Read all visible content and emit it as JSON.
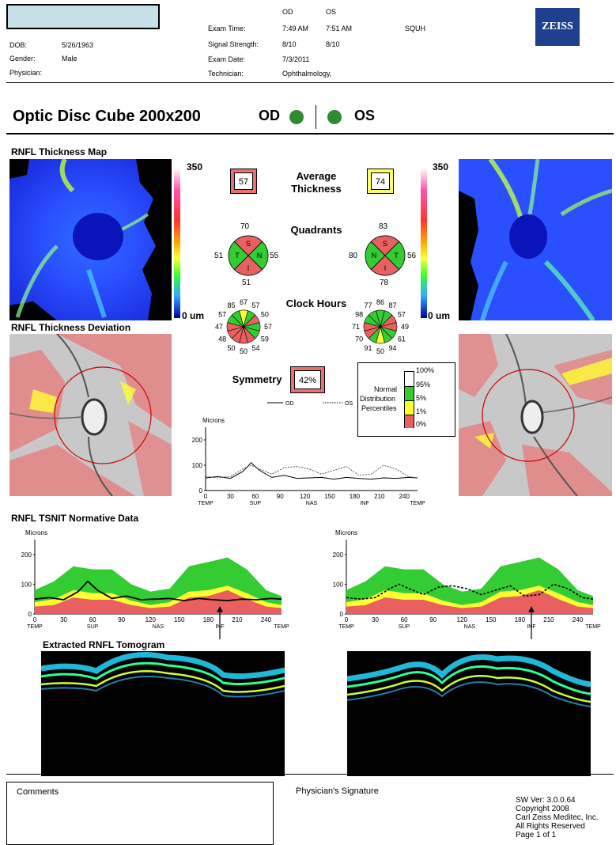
{
  "header": {
    "dob_label": "DOB:",
    "dob": "5/26/1963",
    "gender_label": "Gender:",
    "gender": "Male",
    "physician_label": "Physician:",
    "od_label": "OD",
    "os_label": "OS",
    "exam_time_label": "Exam Time:",
    "exam_time_od": "7:49 AM",
    "exam_time_os": "7:51 AM",
    "site": "SQUH",
    "signal_label": "Signal Strength:",
    "signal_od": "8/10",
    "signal_os": "8/10",
    "exam_date_label": "Exam Date:",
    "exam_date": "7/3/2011",
    "technician_label": "Technician:",
    "technician": "Ophthalmology,",
    "logo": "ZEISS"
  },
  "title": {
    "text": "Optic Disc Cube 200x200",
    "od": "OD",
    "os": "OS"
  },
  "sections": {
    "thickness_map": "RNFL Thickness Map",
    "deviation": "RNFL Thickness Deviation",
    "tsnit": "RNFL TSNIT Normative Data",
    "tomogram": "Extracted RNFL Tomogram"
  },
  "scale": {
    "max": "350",
    "min": "0 um"
  },
  "center": {
    "avg_label_1": "Average",
    "avg_label_2": "Thickness",
    "avg_od": "57",
    "avg_os": "74",
    "quadrants_label": "Quadrants",
    "clock_label": "Clock Hours",
    "symmetry_label": "Symmetry",
    "symmetry": "42%"
  },
  "quadrants_od": {
    "top": "70",
    "left": "51",
    "right": "55",
    "bottom": "51"
  },
  "quadrants_os": {
    "top": "83",
    "left": "80",
    "right": "56",
    "bottom": "78"
  },
  "quad_letters": {
    "s": "S",
    "t": "T",
    "n": "N",
    "i": "I"
  },
  "clock_od": {
    "v12": "67",
    "v1": "57",
    "v2": "50",
    "v3": "57",
    "v4": "59",
    "v5": "54",
    "v6": "50",
    "v7": "50",
    "v8": "48",
    "v9": "47",
    "v10": "57",
    "v11": "85"
  },
  "clock_os": {
    "v12": "86",
    "v1": "87",
    "v2": "57",
    "v3": "49",
    "v4": "61",
    "v5": "94",
    "v6": "50",
    "v7": "91",
    "v8": "70",
    "v9": "71",
    "v10": "98",
    "v11": "77"
  },
  "legend": {
    "p100": "100%",
    "p95": "95%",
    "p5": "5%",
    "p1": "1%",
    "p0": "0%",
    "l1": "Normal",
    "l2": "Distribution",
    "l3": "Percentiles"
  },
  "colors": {
    "red": "#e96060",
    "yellow": "#ffff33",
    "green": "#33cc33",
    "white": "#ffffff"
  },
  "small_chart": {
    "ylabel": "Microns",
    "legend_od": "OD",
    "legend_os": "OS",
    "yticks": [
      "0",
      "100",
      "200"
    ],
    "xticks": [
      "0",
      "30",
      "60",
      "90",
      "120",
      "150",
      "180",
      "210",
      "240"
    ],
    "xnames": [
      "TEMP",
      "SUP",
      "NAS",
      "INF",
      "TEMP"
    ]
  },
  "chart_data": [
    {
      "type": "line",
      "ylabel": "Microns",
      "ylim": [
        0,
        250
      ],
      "xlim": [
        0,
        256
      ],
      "series": [
        {
          "name": "OD",
          "x": [
            0,
            15,
            30,
            45,
            55,
            65,
            80,
            95,
            110,
            125,
            140,
            155,
            170,
            185,
            200,
            215,
            230,
            245,
            256
          ],
          "values": [
            50,
            55,
            48,
            75,
            110,
            80,
            52,
            60,
            48,
            50,
            52,
            45,
            52,
            48,
            45,
            50,
            48,
            52,
            50
          ]
        },
        {
          "name": "OS",
          "x": [
            0,
            15,
            30,
            45,
            55,
            65,
            80,
            95,
            110,
            125,
            140,
            155,
            170,
            185,
            200,
            215,
            230,
            245,
            256
          ],
          "values": [
            55,
            50,
            55,
            85,
            100,
            85,
            65,
            90,
            95,
            85,
            65,
            80,
            95,
            60,
            65,
            100,
            85,
            55,
            50
          ]
        }
      ]
    },
    {
      "type": "area",
      "ylabel": "Microns",
      "ylim": [
        0,
        250
      ],
      "xlim": [
        0,
        256
      ],
      "x": [
        0,
        20,
        40,
        60,
        80,
        100,
        120,
        140,
        160,
        180,
        200,
        220,
        240,
        256
      ],
      "bands": {
        "p95": [
          80,
          110,
          160,
          150,
          150,
          100,
          75,
          85,
          160,
          175,
          190,
          150,
          80,
          60
        ],
        "p5": [
          40,
          50,
          80,
          70,
          70,
          45,
          30,
          40,
          75,
          80,
          95,
          70,
          40,
          30
        ],
        "p1": [
          25,
          30,
          55,
          48,
          48,
          30,
          20,
          25,
          55,
          60,
          80,
          50,
          25,
          20
        ]
      },
      "series": [
        {
          "name": "OD",
          "x": [
            0,
            15,
            30,
            45,
            55,
            65,
            80,
            95,
            110,
            125,
            140,
            155,
            170,
            185,
            200,
            215,
            230,
            245,
            256
          ],
          "values": [
            50,
            55,
            48,
            75,
            110,
            80,
            52,
            60,
            48,
            50,
            52,
            45,
            52,
            48,
            45,
            50,
            48,
            52,
            50
          ]
        }
      ]
    },
    {
      "type": "area",
      "ylabel": "Microns",
      "ylim": [
        0,
        250
      ],
      "xlim": [
        0,
        256
      ],
      "x": [
        0,
        20,
        40,
        60,
        80,
        100,
        120,
        140,
        160,
        180,
        200,
        220,
        240,
        256
      ],
      "bands": {
        "p95": [
          80,
          110,
          160,
          150,
          150,
          100,
          75,
          85,
          160,
          175,
          190,
          150,
          80,
          60
        ],
        "p5": [
          40,
          50,
          80,
          70,
          70,
          45,
          30,
          40,
          75,
          80,
          95,
          70,
          40,
          30
        ],
        "p1": [
          25,
          30,
          55,
          48,
          48,
          30,
          20,
          25,
          55,
          60,
          80,
          50,
          25,
          20
        ]
      },
      "series": [
        {
          "name": "OS",
          "x": [
            0,
            15,
            30,
            45,
            55,
            65,
            80,
            95,
            110,
            125,
            140,
            155,
            170,
            185,
            200,
            215,
            230,
            245,
            256
          ],
          "values": [
            55,
            50,
            55,
            85,
            100,
            85,
            65,
            90,
            95,
            85,
            65,
            80,
            95,
            60,
            65,
            100,
            85,
            55,
            50
          ]
        }
      ]
    }
  ],
  "footer": {
    "comments": "Comments",
    "signature": "Physician's Signature",
    "sw_ver": "SW Ver: 3.0.0.64",
    "copyright": "Copyright 2008",
    "company": "Carl Zeiss Meditec, Inc.",
    "rights": "All Rights Reserved",
    "page": "Page 1 of 1"
  }
}
